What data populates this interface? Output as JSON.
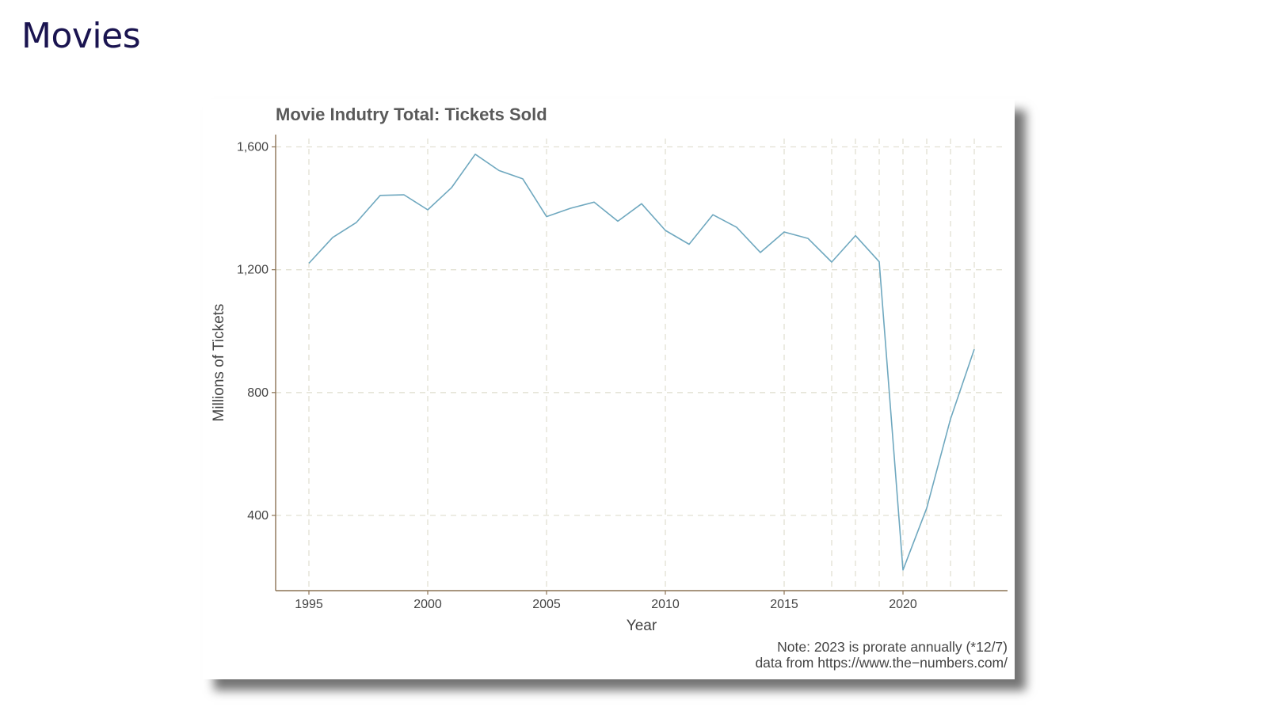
{
  "slide": {
    "title": "Movies",
    "title_color": "#1a1450"
  },
  "chart_data": {
    "type": "line",
    "title": "Movie Indutry Total: Tickets Sold",
    "xlabel": "Year",
    "ylabel": "Millions of Tickets",
    "xlim": [
      1993.6,
      2024.4
    ],
    "ylim": [
      155,
      1640
    ],
    "x_ticks": [
      1995,
      2000,
      2005,
      2010,
      2015,
      2020
    ],
    "y_ticks": [
      400,
      800,
      1200,
      1600
    ],
    "y_tick_labels": [
      "400",
      "800",
      "1,200",
      "1,600"
    ],
    "vertical_gridlines": [
      1995,
      2000,
      2005,
      2010,
      2015,
      2017,
      2018,
      2019,
      2020,
      2021,
      2022,
      2023
    ],
    "grid": true,
    "series": [
      {
        "color": "#6fa8bf",
        "x": [
          1995,
          1996,
          1997,
          1998,
          1999,
          2000,
          2001,
          2002,
          2003,
          2004,
          2005,
          2006,
          2007,
          2008,
          2009,
          2010,
          2011,
          2012,
          2013,
          2014,
          2015,
          2016,
          2017,
          2018,
          2019,
          2020,
          2021,
          2022,
          2023
        ],
        "y": [
          1221,
          1305,
          1354,
          1442,
          1444,
          1395,
          1467,
          1576,
          1523,
          1496,
          1373,
          1400,
          1420,
          1358,
          1415,
          1328,
          1283,
          1379,
          1338,
          1256,
          1323,
          1302,
          1225,
          1311,
          1226,
          222,
          424,
          714,
          941
        ]
      }
    ],
    "note_lines": [
      "Note: 2023 is prorate annually (*12/7)",
      "data from https://www.the−numbers.com/"
    ],
    "colors": {
      "axis": "#8b7355",
      "grid": "#e2e0d2",
      "text": "#444444",
      "title": "#595959"
    }
  }
}
